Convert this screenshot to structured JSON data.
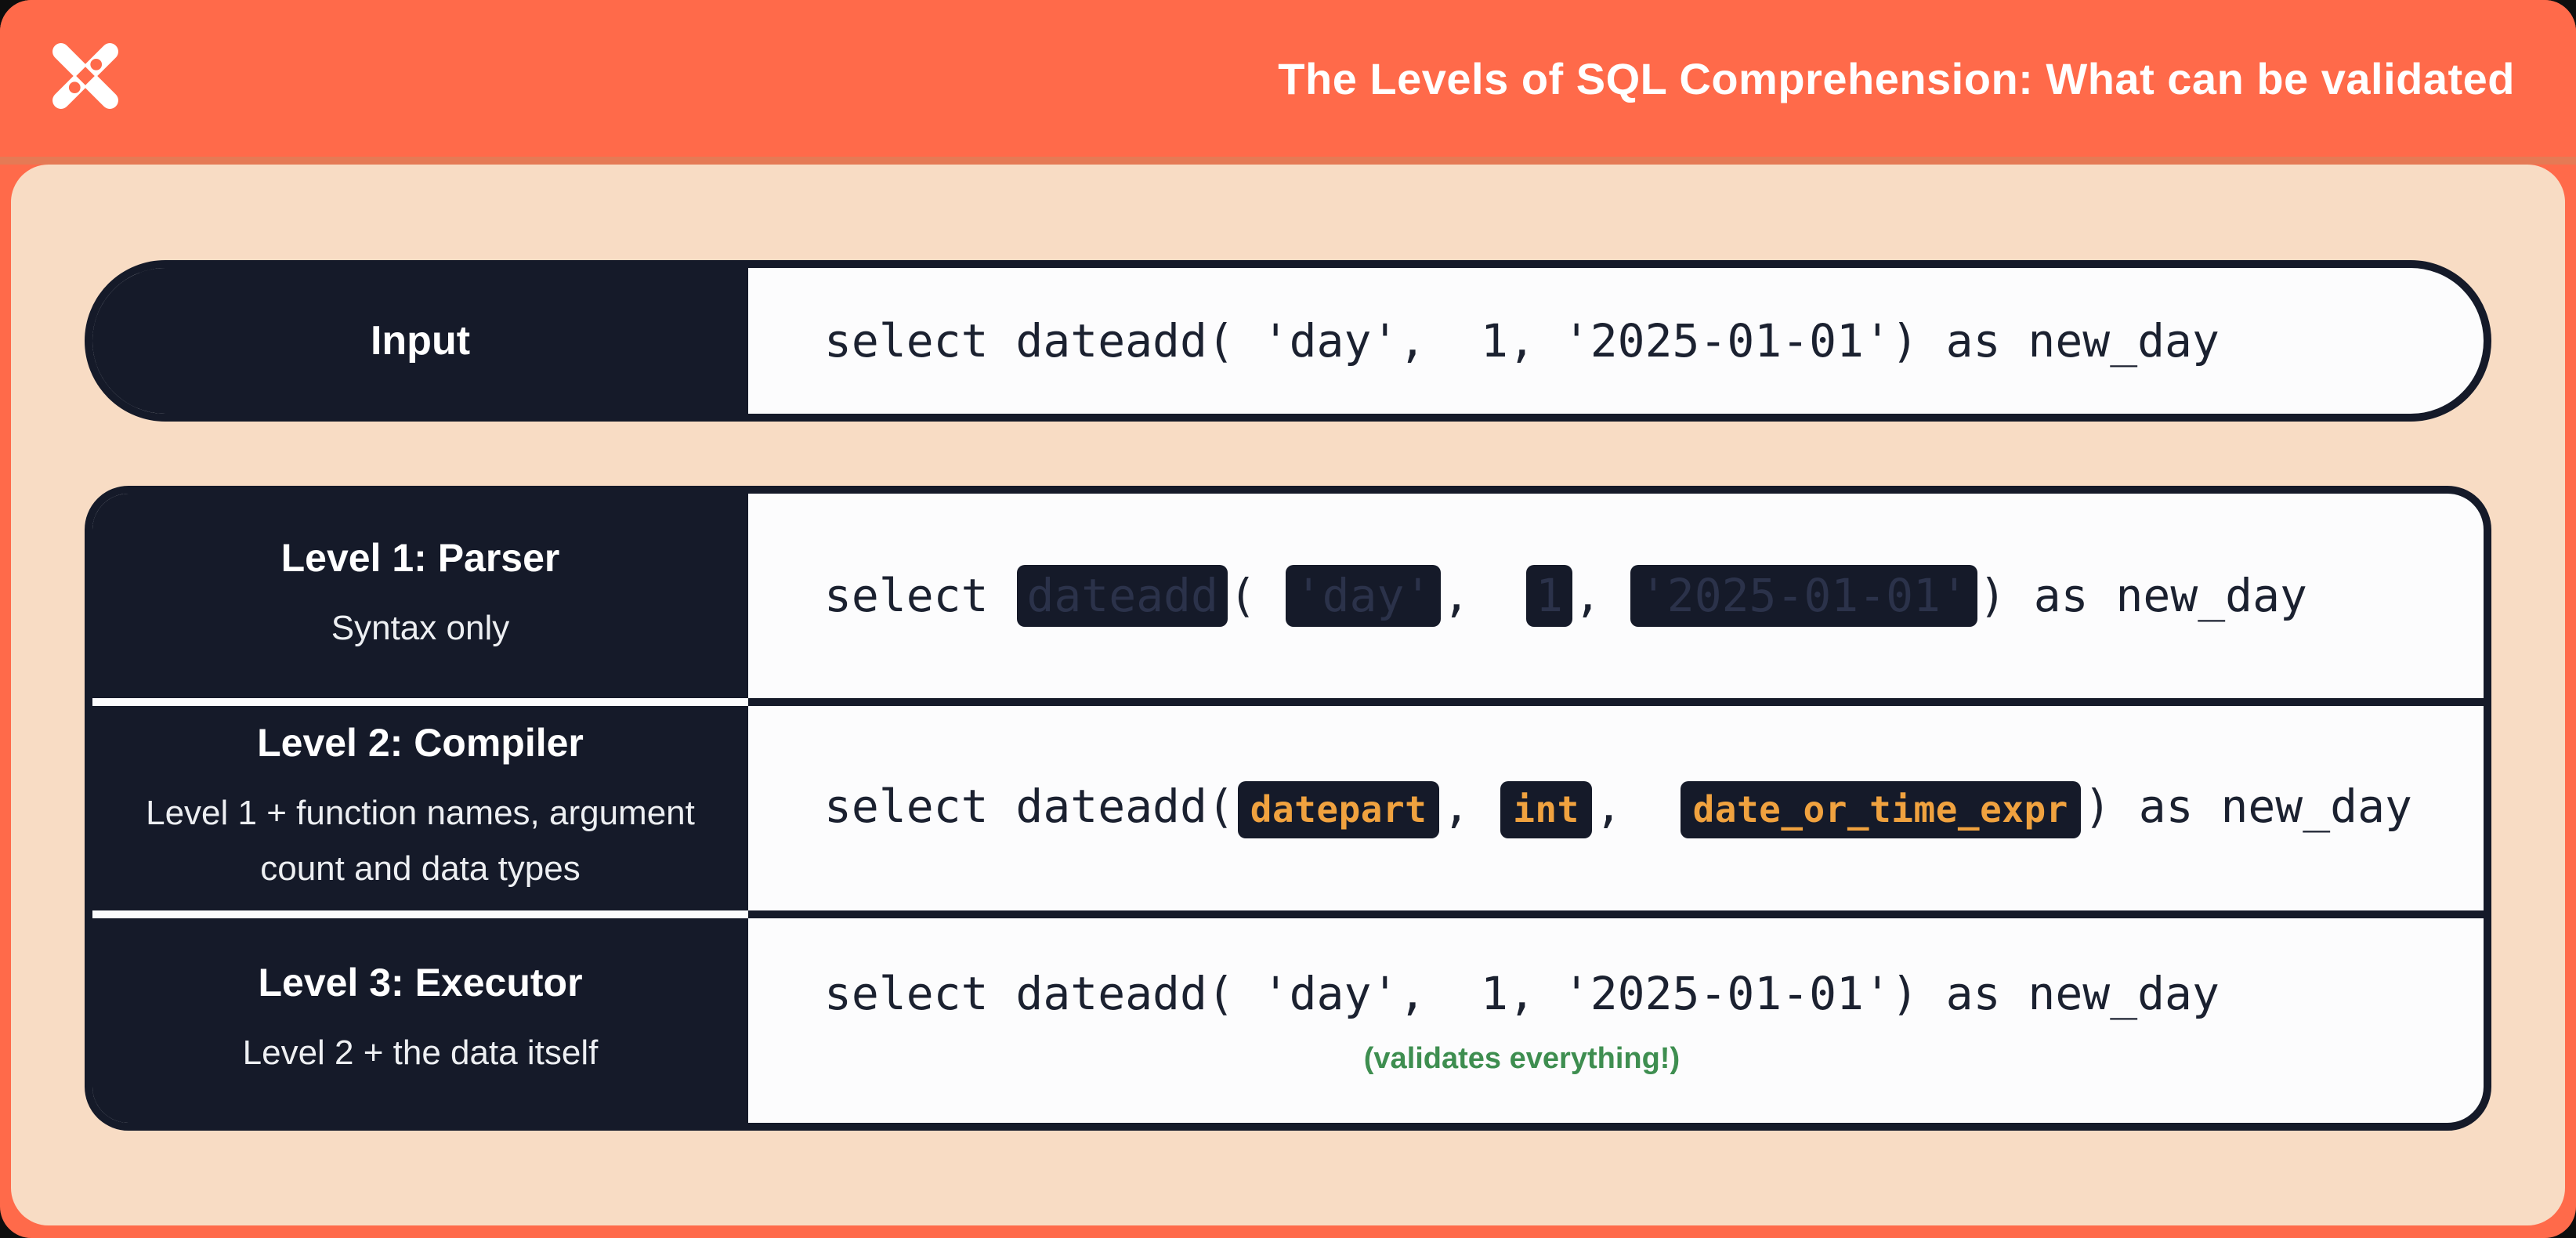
{
  "colors": {
    "orange": "#FF6A4A",
    "orange_band": "#E57A55",
    "peach": "#F8DCC4",
    "navy": "#151A29",
    "code_bg": "#FCFCFD",
    "code_text": "#1B2130",
    "token_orange": "#F0A23F",
    "ghost_text": "#2B324A",
    "green": "#3E8E50"
  },
  "header": {
    "title": "The Levels of SQL Comprehension: What can be validated",
    "logo": "dbt-logo"
  },
  "input_row": {
    "label": "Input",
    "code": "select dateadd( 'day',  1, '2025-01-01') as new_day"
  },
  "levels": [
    {
      "title": "Level 1: Parser",
      "subtitle_lines": [
        "Syntax only"
      ],
      "code_segments": [
        {
          "type": "text",
          "text": "select "
        },
        {
          "type": "redacted",
          "text": "dateadd"
        },
        {
          "type": "text",
          "text": "( "
        },
        {
          "type": "redacted",
          "text": "'day'"
        },
        {
          "type": "text",
          "text": ",  "
        },
        {
          "type": "redacted",
          "text": "1"
        },
        {
          "type": "text",
          "text": ", "
        },
        {
          "type": "redacted",
          "text": "'2025-01-01'"
        },
        {
          "type": "text",
          "text": ") as new_day"
        }
      ]
    },
    {
      "title": "Level 2: Compiler",
      "subtitle_lines": [
        "Level 1 + function names, argument",
        "count and data types"
      ],
      "code_segments": [
        {
          "type": "text",
          "text": "select dateadd("
        },
        {
          "type": "token",
          "text": "datepart"
        },
        {
          "type": "text",
          "text": ", "
        },
        {
          "type": "token",
          "text": "int"
        },
        {
          "type": "text",
          "text": ",  "
        },
        {
          "type": "token",
          "text": "date_or_time_expr"
        },
        {
          "type": "text",
          "text": ") as new_day"
        }
      ]
    },
    {
      "title": "Level 3: Executor",
      "subtitle_lines": [
        "Level 2 + the data itself"
      ],
      "code_segments": [
        {
          "type": "text",
          "text": "select dateadd( 'day',  1, '2025-01-01') as new_day"
        }
      ],
      "caption": "(validates everything!)"
    }
  ]
}
